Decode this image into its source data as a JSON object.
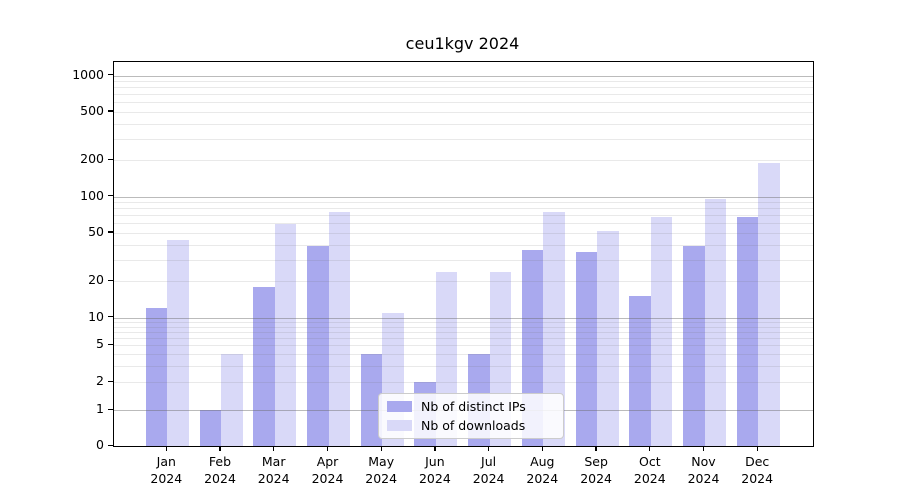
{
  "chart_data": {
    "type": "bar",
    "title": "ceu1kgv 2024",
    "categories": [
      "Jan",
      "Feb",
      "Mar",
      "Apr",
      "May",
      "Jun",
      "Jul",
      "Aug",
      "Sep",
      "Oct",
      "Nov",
      "Dec"
    ],
    "x_year_label": "2024",
    "series": [
      {
        "name": "Nb of distinct IPs",
        "color": "#a9a9ee",
        "values": [
          12,
          1,
          18,
          39,
          4,
          2,
          4,
          36,
          35,
          15,
          39,
          68
        ]
      },
      {
        "name": "Nb of downloads",
        "color": "#d9d9f8",
        "values": [
          44,
          4,
          59,
          75,
          11,
          24,
          24,
          74,
          52,
          68,
          95,
          188
        ]
      }
    ],
    "yticks": [
      0,
      1,
      2,
      5,
      10,
      20,
      50,
      100,
      200,
      500,
      1000
    ],
    "yscale": "symlog",
    "ylim": [
      0,
      1200
    ],
    "xlabel": "",
    "ylabel": "",
    "grid": true,
    "legend_position": "lower-center-inside",
    "colors": {
      "major_grid": "#c8c8c8",
      "minor_grid": "#e9e9e9",
      "axis": "#000000",
      "background": "#ffffff"
    }
  }
}
